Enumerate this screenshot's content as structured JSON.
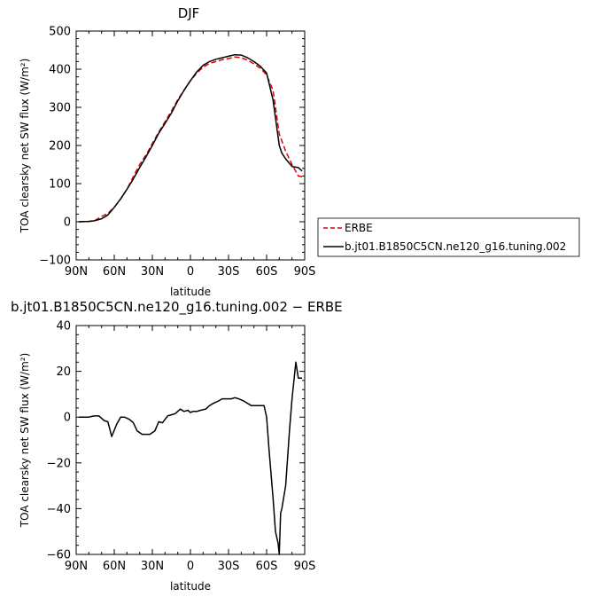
{
  "chart_data": [
    {
      "type": "line",
      "title": "DJF",
      "xlabel": "latitude",
      "ylabel": "TOA clearsky net SW flux (W/m²)",
      "xlim": [
        90,
        -90
      ],
      "ylim": [
        -100,
        500
      ],
      "x_ticks": [
        {
          "value": 90,
          "label": "90N"
        },
        {
          "value": 60,
          "label": "60N"
        },
        {
          "value": 30,
          "label": "30N"
        },
        {
          "value": 0,
          "label": "0"
        },
        {
          "value": -30,
          "label": "30S"
        },
        {
          "value": -60,
          "label": "60S"
        },
        {
          "value": -90,
          "label": "90S"
        }
      ],
      "y_ticks": [
        {
          "value": -100,
          "label": "−100"
        },
        {
          "value": 0,
          "label": "0"
        },
        {
          "value": 100,
          "label": "100"
        },
        {
          "value": 200,
          "label": "200"
        },
        {
          "value": 300,
          "label": "300"
        },
        {
          "value": 400,
          "label": "400"
        },
        {
          "value": 500,
          "label": "500"
        }
      ],
      "legend": "right",
      "series": [
        {
          "name": "ERBE",
          "color": "#e00000",
          "dash": "dashed",
          "x": [
            88,
            80,
            75,
            70,
            65,
            60,
            55,
            50,
            45,
            40,
            35,
            30,
            25,
            20,
            15,
            10,
            5,
            0,
            -5,
            -10,
            -15,
            -20,
            -25,
            -30,
            -35,
            -40,
            -45,
            -50,
            -55,
            -60,
            -65,
            -70,
            -75,
            -80,
            -85,
            -88
          ],
          "y": [
            0,
            1,
            4,
            14,
            22,
            38,
            60,
            85,
            118,
            150,
            175,
            205,
            235,
            262,
            290,
            320,
            345,
            370,
            390,
            405,
            415,
            420,
            425,
            428,
            432,
            430,
            424,
            414,
            403,
            385,
            345,
            230,
            185,
            150,
            120,
            118
          ]
        },
        {
          "name": "b.jt01.B1850C5CN.ne120_g16.tuning.002",
          "color": "#000000",
          "dash": "solid",
          "x": [
            88,
            80,
            75,
            70,
            65,
            60,
            55,
            50,
            45,
            40,
            35,
            30,
            25,
            20,
            15,
            10,
            5,
            0,
            -5,
            -10,
            -15,
            -20,
            -25,
            -30,
            -35,
            -40,
            -45,
            -50,
            -55,
            -60,
            -65,
            -70,
            -72,
            -75,
            -80,
            -85,
            -88
          ],
          "y": [
            0,
            1,
            3,
            8,
            18,
            38,
            60,
            85,
            112,
            142,
            170,
            200,
            232,
            258,
            285,
            317,
            345,
            370,
            393,
            410,
            420,
            426,
            430,
            434,
            438,
            437,
            430,
            420,
            408,
            390,
            320,
            200,
            180,
            165,
            145,
            142,
            133
          ]
        }
      ]
    },
    {
      "type": "line",
      "title": "b.jt01.B1850C5CN.ne120_g16.tuning.002 − ERBE",
      "xlabel": "latitude",
      "ylabel": "TOA clearsky net SW flux (W/m²)",
      "xlim": [
        90,
        -90
      ],
      "ylim": [
        -60,
        40
      ],
      "x_ticks": [
        {
          "value": 90,
          "label": "90N"
        },
        {
          "value": 60,
          "label": "60N"
        },
        {
          "value": 30,
          "label": "30N"
        },
        {
          "value": 0,
          "label": "0"
        },
        {
          "value": -30,
          "label": "30S"
        },
        {
          "value": -60,
          "label": "60S"
        },
        {
          "value": -90,
          "label": "90S"
        }
      ],
      "y_ticks": [
        {
          "value": -60,
          "label": "−60"
        },
        {
          "value": -40,
          "label": "−40"
        },
        {
          "value": -20,
          "label": "−20"
        },
        {
          "value": 0,
          "label": "0"
        },
        {
          "value": 20,
          "label": "20"
        },
        {
          "value": 40,
          "label": "40"
        }
      ],
      "series": [
        {
          "color": "#000000",
          "x": [
            88,
            84,
            80,
            76,
            72,
            68,
            65,
            62,
            58,
            55,
            52,
            48,
            45,
            42,
            38,
            35,
            32,
            28,
            25,
            22,
            18,
            15,
            12,
            8,
            5,
            2,
            0,
            -2,
            -5,
            -8,
            -12,
            -15,
            -18,
            -22,
            -25,
            -28,
            -32,
            -35,
            -38,
            -42,
            -45,
            -48,
            -52,
            -55,
            -58,
            -60,
            -62,
            -65,
            -67,
            -69,
            -70,
            -71,
            -72,
            -75,
            -78,
            -80,
            -83,
            -85,
            -88
          ],
          "y": [
            0,
            0,
            0,
            0.5,
            0.5,
            -1.5,
            -2,
            -8.5,
            -3,
            0,
            0,
            -1,
            -2.5,
            -6,
            -7.5,
            -7.5,
            -7.5,
            -6,
            -2,
            -2.5,
            0.5,
            1,
            1.5,
            3.5,
            2.5,
            3,
            2,
            2.5,
            2.5,
            3,
            3.5,
            5,
            6,
            7,
            8,
            8,
            8,
            8.5,
            8,
            7,
            6,
            5,
            5,
            5,
            5,
            0,
            -15,
            -35,
            -50,
            -55,
            -60,
            -42,
            -40,
            -30,
            -6,
            8,
            24,
            17,
            17
          ]
        }
      ]
    }
  ]
}
